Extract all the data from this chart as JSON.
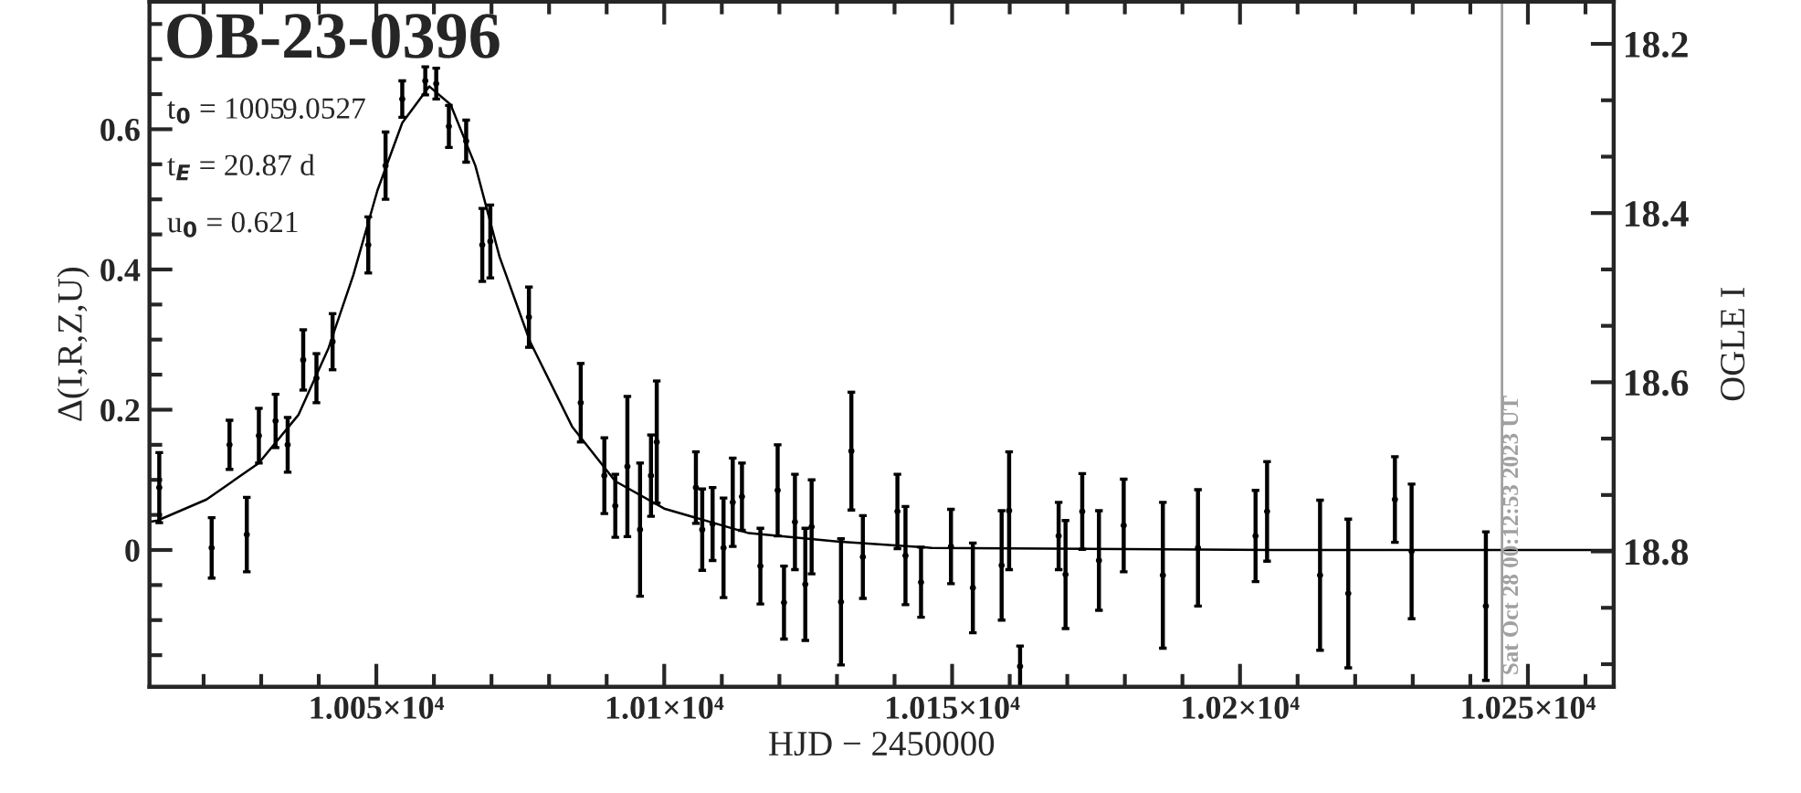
{
  "chart_data": {
    "type": "scatter",
    "title": "OB-23-0396",
    "xlabel": "HJD − 2450000",
    "ylabel": "Δ(I,R,Z,U)",
    "y2label": "OGLE I",
    "annotations": [
      "t$_{0}$ = 10059.0527",
      "t$_{E}$ = 20.87 d",
      "u$_{0}$ = 0.621",
      {
        "text": "Sat Oct 28 00:12:53 2023 UT",
        "x": 10245.5,
        "y": -0.195
      }
    ],
    "xlim": [
      10010.6,
      10264.9
    ],
    "ylim": [
      -0.195,
      0.782
    ],
    "y2lim": [
      18.96,
      18.15
    ],
    "xticks": [
      {
        "value": 10050,
        "label": "1.005×10⁴"
      },
      {
        "value": 10100,
        "label": "1.01×10⁴"
      },
      {
        "value": 10150,
        "label": "1.015×10⁴"
      },
      {
        "value": 10200,
        "label": "1.02×10⁴"
      },
      {
        "value": 10250,
        "label": "1.025×10⁴"
      }
    ],
    "yticks": [
      0,
      0.2,
      0.4,
      0.6
    ],
    "y2ticks": [
      18.2,
      18.4,
      18.6,
      18.8
    ],
    "grid": false,
    "marker": "circle",
    "ref_lines": [
      {
        "axis": "x",
        "value": 10245.5,
        "color": "#a0a0a0"
      }
    ],
    "series": [
      {
        "color": "#000000",
        "x": [
          10012.3,
          10021.4,
          10024.5,
          10027.5,
          10029.6,
          10032.5,
          10034.6,
          10037.3,
          10039.6,
          10042.4,
          10048.6,
          10051.6,
          10054.5,
          10058.5,
          10060.4,
          10062.6,
          10065.6,
          10068.4,
          10069.8,
          10076.5,
          10085.5,
          10089.6,
          10091.5,
          10093.6,
          10095.8,
          10097.7,
          10098.7,
          10105.5,
          10106.6,
          10108.4,
          10110.3,
          10111.9,
          10113.5,
          10116.7,
          10119.7,
          10120.8,
          10122.7,
          10124.5,
          10125.6,
          10130.7,
          10132.5,
          10134.5,
          10140.5,
          10141.9,
          10144.6,
          10149.8,
          10153.6,
          10158.6,
          10159.9,
          10161.8,
          10168.5,
          10169.7,
          10172.6,
          10175.5,
          10179.8,
          10186.6,
          10192.7,
          10202.7,
          10204.7,
          10213.9,
          10218.8,
          10226.9,
          10229.8,
          10242.7
        ],
        "values": [
          0.089,
          0.003,
          0.15,
          0.022,
          0.163,
          0.184,
          0.15,
          0.271,
          0.245,
          0.297,
          0.435,
          0.548,
          0.643,
          0.669,
          0.665,
          0.604,
          0.583,
          0.435,
          0.44,
          0.332,
          0.21,
          0.106,
          0.063,
          0.119,
          0.029,
          0.106,
          0.154,
          0.089,
          0.029,
          0.037,
          0.003,
          0.068,
          0.076,
          -0.023,
          0.085,
          -0.075,
          0.04,
          -0.049,
          0.033,
          -0.074,
          0.141,
          -0.01,
          0.055,
          -0.008,
          -0.046,
          0.005,
          -0.054,
          -0.022,
          0.056,
          -0.166,
          0.02,
          -0.035,
          0.055,
          -0.015,
          0.035,
          -0.036,
          0.003,
          0.02,
          0.055,
          -0.036,
          -0.062,
          0.072,
          -0.002,
          -0.08
        ],
        "errors": [
          0.05,
          0.043,
          0.035,
          0.053,
          0.039,
          0.038,
          0.039,
          0.043,
          0.035,
          0.04,
          0.04,
          0.048,
          0.026,
          0.02,
          0.022,
          0.03,
          0.03,
          0.052,
          0.052,
          0.043,
          0.056,
          0.054,
          0.045,
          0.1,
          0.095,
          0.058,
          0.087,
          0.051,
          0.058,
          0.052,
          0.071,
          0.063,
          0.048,
          0.054,
          0.065,
          0.052,
          0.068,
          0.08,
          0.067,
          0.09,
          0.084,
          0.059,
          0.053,
          0.07,
          0.05,
          0.053,
          0.064,
          0.078,
          0.084,
          0.029,
          0.048,
          0.077,
          0.054,
          0.071,
          0.066,
          0.104,
          0.083,
          0.065,
          0.071,
          0.107,
          0.106,
          0.061,
          0.096,
          0.106
        ]
      },
      {
        "type": "line",
        "color": "#000000",
        "marker": "none",
        "x": [
          10010.6,
          10012.0,
          10020.5,
          10029.6,
          10036.5,
          10041.7,
          10046.0,
          10050.2,
          10054.5,
          10059.2,
          10062.9,
          10067.2,
          10071.4,
          10076.7,
          10084.0,
          10091.5,
          10100.0,
          10114.7,
          10130.1,
          10146.5,
          10205.5,
          10264.9
        ],
        "values": [
          0.04,
          0.042,
          0.072,
          0.124,
          0.193,
          0.288,
          0.392,
          0.513,
          0.609,
          0.661,
          0.635,
          0.548,
          0.418,
          0.297,
          0.176,
          0.098,
          0.059,
          0.024,
          0.012,
          0.003,
          0.0,
          0.0
        ]
      }
    ]
  }
}
